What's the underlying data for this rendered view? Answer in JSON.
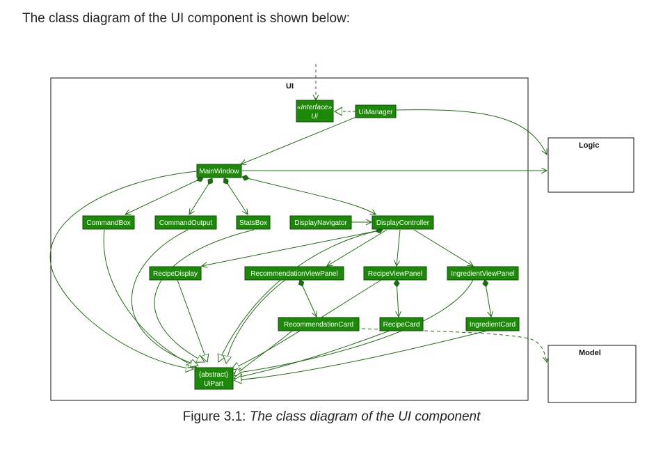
{
  "intro_text": "The class diagram of the UI component is shown below:",
  "caption": {
    "figure_label": "Figure 3.1:",
    "title": "The class diagram of the UI component"
  },
  "diagram": {
    "package_label": "UI",
    "external": {
      "logic": "Logic",
      "model": "Model"
    },
    "nodes": {
      "ui_stereotype": "«Interface»",
      "ui": "Ui",
      "ui_manager": "UiManager",
      "main_window": "MainWindow",
      "command_box": "CommandBox",
      "command_output": "CommandOutput",
      "stats_box": "StatsBox",
      "display_navigator": "DisplayNavigator",
      "display_controller": "DisplayController",
      "recipe_display": "RecipeDisplay",
      "recommendation_view_panel": "RecommendationViewPanel",
      "recipe_view_panel": "RecipeViewPanel",
      "ingredient_view_panel": "IngredientViewPanel",
      "recommendation_card": "RecommendationCard",
      "recipe_card": "RecipeCard",
      "ingredient_card": "IngredientCard",
      "ui_part_stereotype": "{abstract}",
      "ui_part": "UiPart"
    },
    "colors": {
      "node_fill": "#1c8a08",
      "node_border": "#0e4d05",
      "edge": "#1e6b12"
    }
  }
}
